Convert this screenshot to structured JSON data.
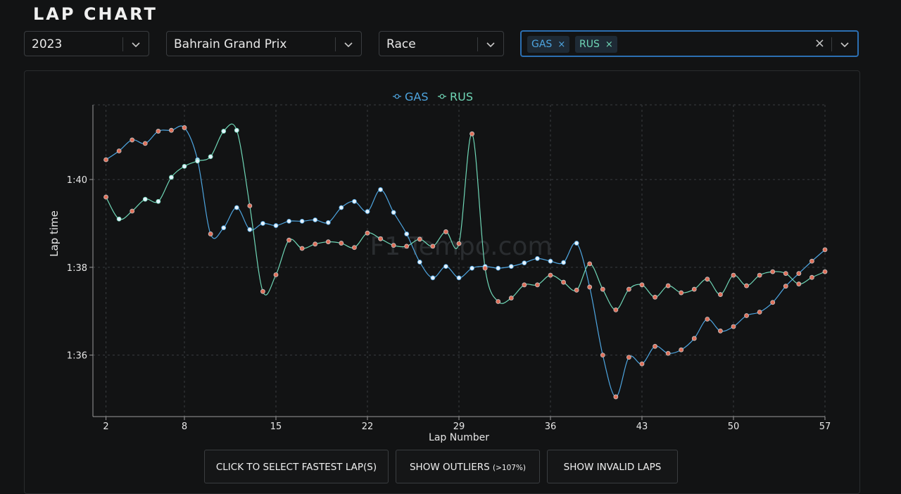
{
  "page_title": "LAP CHART",
  "filters": {
    "year": "2023",
    "event": "Bahrain Grand Prix",
    "session": "Race",
    "drivers": [
      {
        "code": "GAS",
        "color": "#4ea5e0"
      },
      {
        "code": "RUS",
        "color": "#6fd6b6"
      }
    ],
    "clear_icon": "×"
  },
  "watermark": "F1-Tempo.com",
  "buttons": {
    "fastest": "CLICK TO SELECT FASTEST LAP(S)",
    "outliers": "SHOW OUTLIERS",
    "outliers_note": "(>107%)",
    "invalid": "SHOW INVALID LAPS"
  },
  "colors": {
    "gas": "#4ea5e0",
    "rus": "#6fd6b6",
    "marker_red": "#e0705a",
    "marker_white": "#e6f2ff"
  },
  "chart_data": {
    "type": "line",
    "xlabel": "Lap Number",
    "ylabel": "Lap time",
    "x_ticks": [
      2,
      8,
      15,
      22,
      29,
      36,
      43,
      50,
      57
    ],
    "y_ticks": [
      96,
      98,
      100
    ],
    "y_tick_labels": [
      "1:36",
      "1:38",
      "1:40"
    ],
    "xlim": [
      1,
      57
    ],
    "ylim": [
      94.6,
      101.7
    ],
    "grid": true,
    "legend": "top-center",
    "series": [
      {
        "name": "GAS",
        "x": [
          2,
          3,
          4,
          5,
          6,
          7,
          8,
          9,
          10,
          11,
          12,
          13,
          14,
          15,
          16,
          17,
          18,
          19,
          20,
          21,
          22,
          23,
          24,
          25,
          26,
          27,
          28,
          29,
          30,
          31,
          32,
          33,
          34,
          35,
          36,
          37,
          38,
          39,
          40,
          41,
          42,
          43,
          44,
          45,
          46,
          47,
          48,
          49,
          50,
          51,
          52,
          53,
          54,
          55,
          56,
          57
        ],
        "y": [
          100.45,
          100.65,
          100.9,
          100.82,
          101.1,
          101.12,
          101.18,
          100.45,
          98.76,
          98.9,
          99.36,
          98.86,
          99.0,
          98.95,
          99.05,
          99.05,
          99.08,
          99.02,
          99.36,
          99.5,
          99.27,
          99.77,
          99.25,
          98.76,
          98.12,
          97.76,
          98.02,
          97.76,
          97.98,
          98.02,
          97.98,
          98.02,
          98.1,
          98.2,
          98.14,
          98.11,
          98.55,
          97.55,
          96.0,
          95.05,
          95.95,
          95.8,
          96.2,
          96.04,
          96.12,
          96.38,
          96.82,
          96.55,
          96.65,
          96.9,
          96.98,
          97.2,
          97.57,
          97.86,
          98.14,
          98.4
        ],
        "outline_laps": [
          9,
          11,
          12,
          13,
          14,
          15,
          16,
          17,
          18,
          19,
          20,
          21,
          22,
          23,
          24,
          25,
          26,
          27,
          28,
          29,
          30,
          31,
          32,
          33,
          34,
          35,
          36,
          37,
          38
        ]
      },
      {
        "name": "RUS",
        "x": [
          2,
          3,
          4,
          5,
          6,
          7,
          8,
          9,
          10,
          11,
          12,
          13,
          14,
          15,
          16,
          17,
          18,
          19,
          20,
          21,
          22,
          23,
          24,
          25,
          26,
          27,
          28,
          29,
          30,
          31,
          32,
          33,
          34,
          35,
          36,
          37,
          38,
          39,
          40,
          41,
          42,
          43,
          44,
          45,
          46,
          47,
          48,
          49,
          50,
          51,
          52,
          53,
          54,
          55,
          56,
          57
        ],
        "y": [
          99.6,
          99.1,
          99.28,
          99.55,
          99.5,
          100.05,
          100.3,
          100.42,
          100.52,
          101.1,
          101.12,
          99.4,
          97.45,
          97.83,
          98.62,
          98.43,
          98.53,
          98.58,
          98.55,
          98.45,
          98.78,
          98.65,
          98.5,
          98.48,
          98.64,
          98.48,
          98.81,
          98.54,
          101.04,
          97.98,
          97.22,
          97.3,
          97.6,
          97.6,
          97.82,
          97.66,
          97.48,
          98.08,
          97.5,
          97.03,
          97.5,
          97.6,
          97.32,
          97.58,
          97.42,
          97.5,
          97.73,
          97.38,
          97.82,
          97.58,
          97.82,
          97.9,
          97.86,
          97.62,
          97.77,
          97.9
        ],
        "outline_laps": [
          3,
          5,
          6,
          7,
          8,
          9,
          10,
          11,
          12
        ]
      }
    ]
  }
}
